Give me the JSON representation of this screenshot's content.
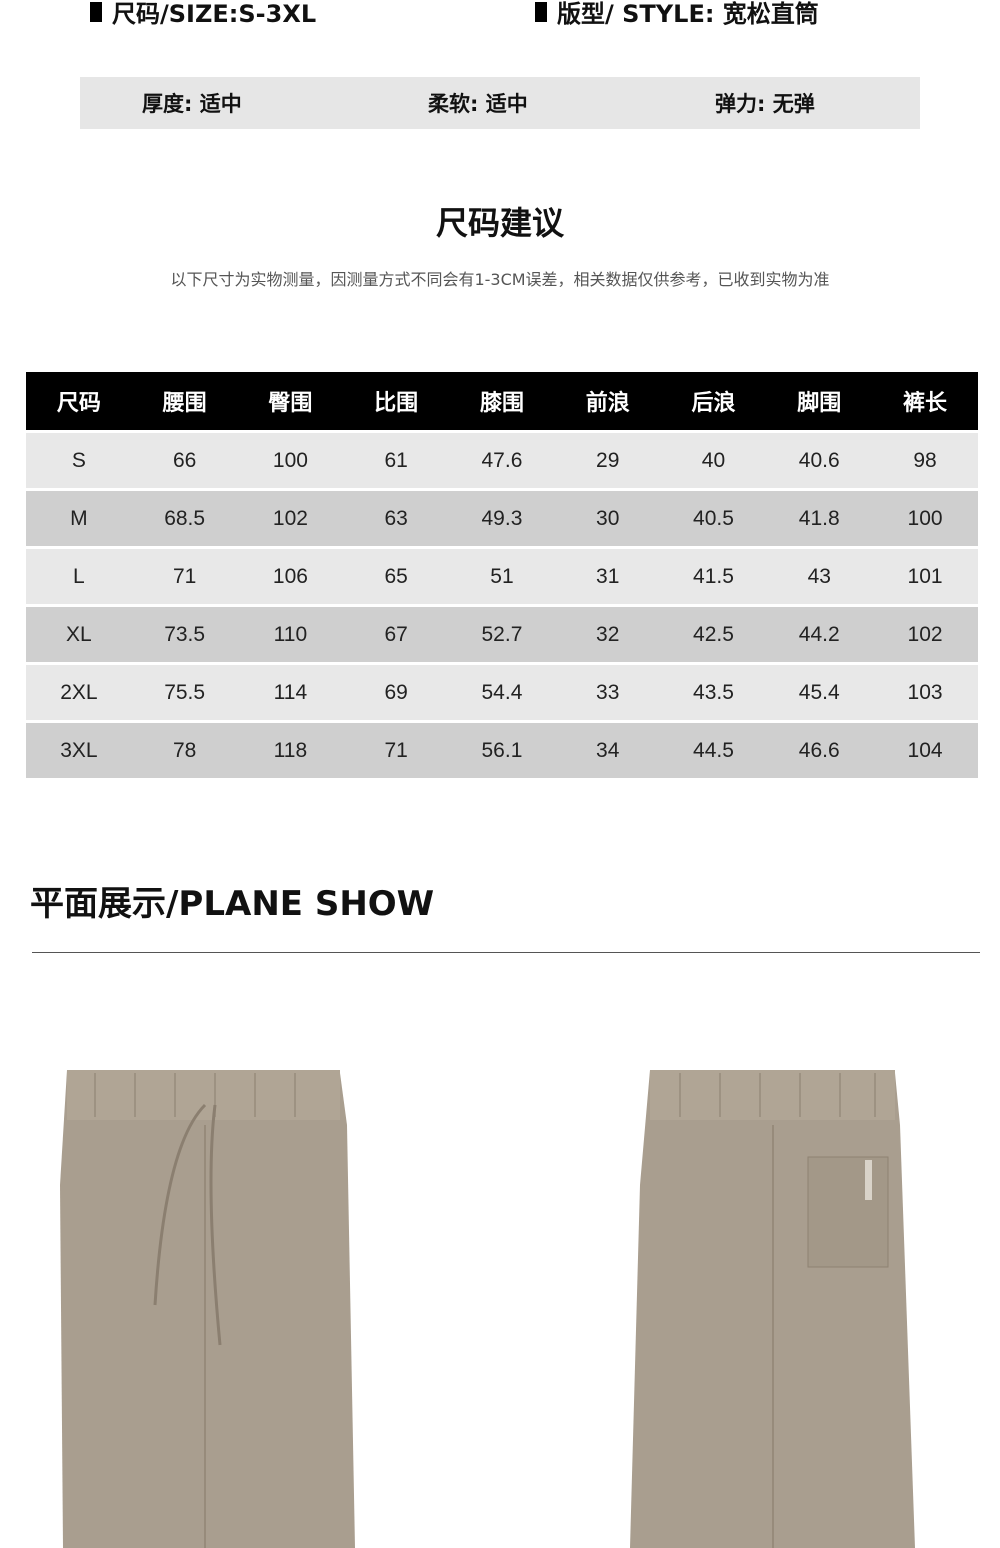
{
  "specs": {
    "size": "尺码/SIZE:S-3XL",
    "style": "版型/ STYLE: 宽松直筒"
  },
  "attributes": [
    {
      "text": "厚度: 适中"
    },
    {
      "text": "柔软: 适中"
    },
    {
      "text": "弹力: 无弹"
    }
  ],
  "size_guide": {
    "title": "尺码建议",
    "note": "以下尺寸为实物测量，因测量方式不同会有1-3CM误差，相关数据仅供参考，已收到实物为准",
    "headers": [
      "尺码",
      "腰围",
      "臀围",
      "比围",
      "膝围",
      "前浪",
      "后浪",
      "脚围",
      "裤长"
    ],
    "rows": [
      [
        "S",
        "66",
        "100",
        "61",
        "47.6",
        "29",
        "40",
        "40.6",
        "98"
      ],
      [
        "M",
        "68.5",
        "102",
        "63",
        "49.3",
        "30",
        "40.5",
        "41.8",
        "100"
      ],
      [
        "L",
        "71",
        "106",
        "65",
        "51",
        "31",
        "41.5",
        "43",
        "101"
      ],
      [
        "XL",
        "73.5",
        "110",
        "67",
        "52.7",
        "32",
        "42.5",
        "44.2",
        "102"
      ],
      [
        "2XL",
        "75.5",
        "114",
        "69",
        "54.4",
        "33",
        "43.5",
        "45.4",
        "103"
      ],
      [
        "3XL",
        "78",
        "118",
        "71",
        "56.1",
        "34",
        "44.5",
        "46.6",
        "104"
      ]
    ]
  },
  "plane_show": {
    "title": "平面展示/PLANE SHOW",
    "images": [
      "pants-front",
      "pants-back"
    ]
  },
  "colors": {
    "pants": "#a99e8f",
    "row_light": "#e8e8e8",
    "row_dark": "#cfcfcf"
  }
}
